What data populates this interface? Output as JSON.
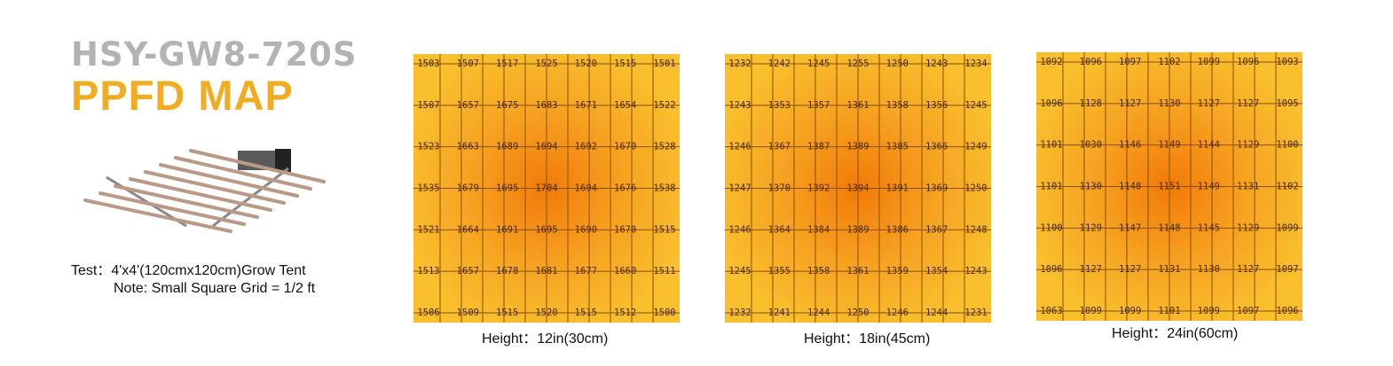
{
  "header": {
    "model": "HSY-GW8-720S",
    "subtitle": "PPFD MAP"
  },
  "test_info": {
    "test": "Test：4'x4'(120cmx120cm)Grow Tent",
    "note": "Note: Small Square Grid = 1/2 ft"
  },
  "colors": {
    "heat_high": "#f27a08",
    "heat_low": "#f9bf2c",
    "subtitle": "#f1ad22",
    "model": "#b3b3b3"
  },
  "chart_data": [
    {
      "type": "heatmap",
      "caption": "Height：12in(30cm)",
      "values": [
        [
          1503,
          1507,
          1517,
          1525,
          1520,
          1515,
          1501
        ],
        [
          1507,
          1657,
          1675,
          1683,
          1671,
          1654,
          1522
        ],
        [
          1523,
          1663,
          1689,
          1694,
          1692,
          1670,
          1528
        ],
        [
          1535,
          1679,
          1695,
          1704,
          1694,
          1676,
          1538
        ],
        [
          1521,
          1664,
          1691,
          1695,
          1690,
          1670,
          1515
        ],
        [
          1513,
          1657,
          1678,
          1681,
          1677,
          1660,
          1511
        ],
        [
          1506,
          1509,
          1515,
          1520,
          1515,
          1512,
          1500
        ]
      ]
    },
    {
      "type": "heatmap",
      "caption": "Height：18in(45cm)",
      "values": [
        [
          1232,
          1242,
          1245,
          1255,
          1250,
          1243,
          1234
        ],
        [
          1243,
          1353,
          1357,
          1361,
          1358,
          1356,
          1245
        ],
        [
          1246,
          1367,
          1387,
          1389,
          1385,
          1366,
          1249
        ],
        [
          1247,
          1370,
          1392,
          1394,
          1391,
          1369,
          1250
        ],
        [
          1246,
          1364,
          1384,
          1389,
          1386,
          1367,
          1248
        ],
        [
          1245,
          1355,
          1358,
          1361,
          1359,
          1354,
          1243
        ],
        [
          1232,
          1241,
          1244,
          1250,
          1246,
          1244,
          1231
        ]
      ]
    },
    {
      "type": "heatmap",
      "caption": "Height：24in(60cm)",
      "values": [
        [
          1092,
          1096,
          1097,
          1102,
          1099,
          1096,
          1093
        ],
        [
          1096,
          1128,
          1127,
          1130,
          1127,
          1127,
          1095
        ],
        [
          1101,
          1030,
          1146,
          1149,
          1144,
          1129,
          1100
        ],
        [
          1101,
          1130,
          1148,
          1151,
          1149,
          1131,
          1102
        ],
        [
          1100,
          1129,
          1147,
          1148,
          1145,
          1129,
          1099
        ],
        [
          1096,
          1127,
          1127,
          1131,
          1130,
          1127,
          1097
        ],
        [
          1063,
          1099,
          1099,
          1101,
          1099,
          1097,
          1096
        ]
      ]
    }
  ]
}
